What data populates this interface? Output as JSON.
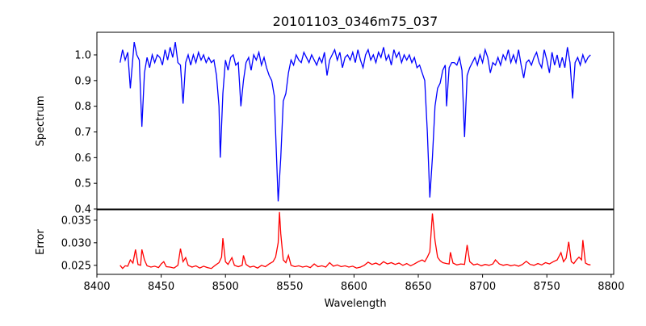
{
  "chart_data": [
    {
      "type": "line",
      "title": "20101103_0346m75_037",
      "xlabel": "",
      "ylabel": "Spectrum",
      "xlim": [
        8400,
        8802
      ],
      "ylim": [
        0.4,
        1.088
      ],
      "yticks": [
        "0.4",
        "0.5",
        "0.6",
        "0.7",
        "0.8",
        "0.9",
        "1.0"
      ],
      "ytick_values": [
        0.4,
        0.5,
        0.6,
        0.7,
        0.8,
        0.9,
        1.0
      ],
      "color": "#0000ff",
      "grid": false,
      "points": [
        [
          8418,
          0.97
        ],
        [
          8420,
          1.02
        ],
        [
          8422,
          0.98
        ],
        [
          8424,
          1.01
        ],
        [
          8426,
          0.87
        ],
        [
          8428,
          0.99
        ],
        [
          8429,
          1.05
        ],
        [
          8431,
          1.0
        ],
        [
          8433,
          0.98
        ],
        [
          8435,
          0.72
        ],
        [
          8437,
          0.93
        ],
        [
          8439,
          0.99
        ],
        [
          8441,
          0.95
        ],
        [
          8443,
          1.0
        ],
        [
          8445,
          0.97
        ],
        [
          8447,
          1.0
        ],
        [
          8449,
          0.99
        ],
        [
          8451,
          0.96
        ],
        [
          8453,
          1.02
        ],
        [
          8455,
          0.98
        ],
        [
          8457,
          1.03
        ],
        [
          8459,
          0.99
        ],
        [
          8461,
          1.05
        ],
        [
          8463,
          0.97
        ],
        [
          8465,
          0.96
        ],
        [
          8467,
          0.81
        ],
        [
          8469,
          0.97
        ],
        [
          8471,
          1.0
        ],
        [
          8473,
          0.96
        ],
        [
          8475,
          1.0
        ],
        [
          8477,
          0.97
        ],
        [
          8479,
          1.01
        ],
        [
          8481,
          0.98
        ],
        [
          8483,
          1.0
        ],
        [
          8485,
          0.97
        ],
        [
          8487,
          0.99
        ],
        [
          8489,
          0.97
        ],
        [
          8491,
          0.98
        ],
        [
          8493,
          0.92
        ],
        [
          8495,
          0.8
        ],
        [
          8496,
          0.6
        ],
        [
          8498,
          0.85
        ],
        [
          8500,
          0.98
        ],
        [
          8502,
          0.94
        ],
        [
          8504,
          0.99
        ],
        [
          8506,
          1.0
        ],
        [
          8508,
          0.96
        ],
        [
          8510,
          0.97
        ],
        [
          8512,
          0.8
        ],
        [
          8514,
          0.9
        ],
        [
          8516,
          0.97
        ],
        [
          8518,
          0.99
        ],
        [
          8520,
          0.94
        ],
        [
          8522,
          1.0
        ],
        [
          8524,
          0.98
        ],
        [
          8526,
          1.01
        ],
        [
          8528,
          0.96
        ],
        [
          8530,
          0.99
        ],
        [
          8532,
          0.95
        ],
        [
          8534,
          0.92
        ],
        [
          8536,
          0.9
        ],
        [
          8538,
          0.84
        ],
        [
          8539,
          0.7
        ],
        [
          8541,
          0.43
        ],
        [
          8543,
          0.6
        ],
        [
          8545,
          0.82
        ],
        [
          8547,
          0.85
        ],
        [
          8549,
          0.93
        ],
        [
          8551,
          0.98
        ],
        [
          8553,
          0.96
        ],
        [
          8555,
          1.0
        ],
        [
          8557,
          0.98
        ],
        [
          8559,
          0.97
        ],
        [
          8561,
          1.01
        ],
        [
          8563,
          0.99
        ],
        [
          8565,
          0.97
        ],
        [
          8567,
          1.0
        ],
        [
          8569,
          0.98
        ],
        [
          8571,
          0.96
        ],
        [
          8573,
          0.99
        ],
        [
          8575,
          0.97
        ],
        [
          8577,
          1.01
        ],
        [
          8579,
          0.92
        ],
        [
          8581,
          0.98
        ],
        [
          8583,
          1.0
        ],
        [
          8585,
          1.02
        ],
        [
          8587,
          0.98
        ],
        [
          8589,
          1.01
        ],
        [
          8591,
          0.95
        ],
        [
          8593,
          0.99
        ],
        [
          8595,
          1.0
        ],
        [
          8597,
          0.98
        ],
        [
          8599,
          1.01
        ],
        [
          8601,
          0.97
        ],
        [
          8603,
          1.02
        ],
        [
          8605,
          0.98
        ],
        [
          8607,
          0.95
        ],
        [
          8609,
          1.0
        ],
        [
          8611,
          1.02
        ],
        [
          8613,
          0.98
        ],
        [
          8615,
          1.0
        ],
        [
          8617,
          0.97
        ],
        [
          8619,
          1.01
        ],
        [
          8621,
          0.99
        ],
        [
          8623,
          1.03
        ],
        [
          8625,
          0.98
        ],
        [
          8627,
          1.0
        ],
        [
          8629,
          0.96
        ],
        [
          8631,
          1.02
        ],
        [
          8633,
          0.99
        ],
        [
          8635,
          1.01
        ],
        [
          8637,
          0.97
        ],
        [
          8639,
          1.0
        ],
        [
          8641,
          0.98
        ],
        [
          8643,
          1.0
        ],
        [
          8645,
          0.97
        ],
        [
          8647,
          0.99
        ],
        [
          8649,
          0.95
        ],
        [
          8651,
          0.96
        ],
        [
          8653,
          0.93
        ],
        [
          8655,
          0.9
        ],
        [
          8657,
          0.7
        ],
        [
          8659,
          0.445
        ],
        [
          8661,
          0.6
        ],
        [
          8663,
          0.8
        ],
        [
          8665,
          0.87
        ],
        [
          8667,
          0.89
        ],
        [
          8669,
          0.94
        ],
        [
          8671,
          0.96
        ],
        [
          8672,
          0.8
        ],
        [
          8674,
          0.95
        ],
        [
          8676,
          0.97
        ],
        [
          8678,
          0.97
        ],
        [
          8680,
          0.96
        ],
        [
          8682,
          0.99
        ],
        [
          8684,
          0.94
        ],
        [
          8686,
          0.68
        ],
        [
          8688,
          0.92
        ],
        [
          8690,
          0.95
        ],
        [
          8692,
          0.97
        ],
        [
          8694,
          0.99
        ],
        [
          8696,
          0.96
        ],
        [
          8698,
          1.0
        ],
        [
          8700,
          0.97
        ],
        [
          8702,
          1.02
        ],
        [
          8704,
          0.99
        ],
        [
          8706,
          0.93
        ],
        [
          8708,
          0.97
        ],
        [
          8710,
          0.96
        ],
        [
          8712,
          0.99
        ],
        [
          8714,
          0.96
        ],
        [
          8716,
          1.0
        ],
        [
          8718,
          0.98
        ],
        [
          8720,
          1.02
        ],
        [
          8722,
          0.97
        ],
        [
          8724,
          1.0
        ],
        [
          8726,
          0.97
        ],
        [
          8728,
          1.02
        ],
        [
          8730,
          0.96
        ],
        [
          8732,
          0.91
        ],
        [
          8734,
          0.97
        ],
        [
          8736,
          0.98
        ],
        [
          8738,
          0.96
        ],
        [
          8740,
          0.99
        ],
        [
          8742,
          1.01
        ],
        [
          8744,
          0.97
        ],
        [
          8746,
          0.95
        ],
        [
          8748,
          1.02
        ],
        [
          8750,
          0.98
        ],
        [
          8752,
          0.93
        ],
        [
          8754,
          1.01
        ],
        [
          8756,
          0.96
        ],
        [
          8758,
          1.0
        ],
        [
          8760,
          0.95
        ],
        [
          8762,
          0.99
        ],
        [
          8764,
          0.95
        ],
        [
          8766,
          1.03
        ],
        [
          8768,
          0.97
        ],
        [
          8770,
          0.83
        ],
        [
          8772,
          0.97
        ],
        [
          8774,
          0.99
        ],
        [
          8776,
          0.96
        ],
        [
          8778,
          1.0
        ],
        [
          8780,
          0.97
        ],
        [
          8782,
          0.99
        ],
        [
          8784,
          1.0
        ]
      ]
    },
    {
      "type": "line",
      "title": "",
      "xlabel": "Wavelength",
      "ylabel": "Error",
      "xlim": [
        8400,
        8802
      ],
      "ylim": [
        0.023,
        0.0373
      ],
      "xticks": [
        "8400",
        "8450",
        "8500",
        "8550",
        "8600",
        "8650",
        "8700",
        "8750",
        "8800"
      ],
      "xtick_values": [
        8400,
        8450,
        8500,
        8550,
        8600,
        8650,
        8700,
        8750,
        8800
      ],
      "yticks": [
        "0.025",
        "0.030",
        "0.035"
      ],
      "ytick_values": [
        0.025,
        0.03,
        0.035
      ],
      "color": "#ff0000",
      "grid": false,
      "points": [
        [
          8418,
          0.025
        ],
        [
          8420,
          0.0243
        ],
        [
          8422,
          0.0249
        ],
        [
          8424,
          0.0248
        ],
        [
          8426,
          0.0262
        ],
        [
          8428,
          0.0255
        ],
        [
          8430,
          0.0285
        ],
        [
          8432,
          0.0252
        ],
        [
          8434,
          0.025
        ],
        [
          8435,
          0.0285
        ],
        [
          8437,
          0.0262
        ],
        [
          8439,
          0.0249
        ],
        [
          8442,
          0.0246
        ],
        [
          8445,
          0.0248
        ],
        [
          8448,
          0.0245
        ],
        [
          8450,
          0.0253
        ],
        [
          8452,
          0.0258
        ],
        [
          8454,
          0.0247
        ],
        [
          8457,
          0.0246
        ],
        [
          8460,
          0.0244
        ],
        [
          8463,
          0.025
        ],
        [
          8465,
          0.0287
        ],
        [
          8467,
          0.0258
        ],
        [
          8469,
          0.0267
        ],
        [
          8471,
          0.025
        ],
        [
          8474,
          0.0246
        ],
        [
          8477,
          0.0249
        ],
        [
          8480,
          0.0244
        ],
        [
          8483,
          0.0248
        ],
        [
          8486,
          0.0245
        ],
        [
          8489,
          0.0243
        ],
        [
          8492,
          0.025
        ],
        [
          8495,
          0.0256
        ],
        [
          8497,
          0.0268
        ],
        [
          8498,
          0.031
        ],
        [
          8500,
          0.0258
        ],
        [
          8502,
          0.0252
        ],
        [
          8505,
          0.0267
        ],
        [
          8507,
          0.025
        ],
        [
          8510,
          0.0247
        ],
        [
          8513,
          0.025
        ],
        [
          8514,
          0.0272
        ],
        [
          8516,
          0.0252
        ],
        [
          8519,
          0.0246
        ],
        [
          8522,
          0.0248
        ],
        [
          8525,
          0.0244
        ],
        [
          8528,
          0.025
        ],
        [
          8531,
          0.0247
        ],
        [
          8534,
          0.0253
        ],
        [
          8537,
          0.0258
        ],
        [
          8539,
          0.0268
        ],
        [
          8541,
          0.03
        ],
        [
          8542,
          0.0368
        ],
        [
          8543,
          0.032
        ],
        [
          8545,
          0.0262
        ],
        [
          8547,
          0.0256
        ],
        [
          8549,
          0.0272
        ],
        [
          8551,
          0.025
        ],
        [
          8554,
          0.0247
        ],
        [
          8557,
          0.0249
        ],
        [
          8560,
          0.0246
        ],
        [
          8563,
          0.0248
        ],
        [
          8566,
          0.0245
        ],
        [
          8569,
          0.0253
        ],
        [
          8572,
          0.0247
        ],
        [
          8575,
          0.0249
        ],
        [
          8578,
          0.0246
        ],
        [
          8581,
          0.0256
        ],
        [
          8584,
          0.0248
        ],
        [
          8587,
          0.0251
        ],
        [
          8590,
          0.0247
        ],
        [
          8593,
          0.0249
        ],
        [
          8596,
          0.0246
        ],
        [
          8599,
          0.0248
        ],
        [
          8602,
          0.0244
        ],
        [
          8605,
          0.0246
        ],
        [
          8608,
          0.025
        ],
        [
          8611,
          0.0257
        ],
        [
          8614,
          0.0252
        ],
        [
          8617,
          0.0255
        ],
        [
          8620,
          0.0251
        ],
        [
          8623,
          0.0258
        ],
        [
          8626,
          0.0253
        ],
        [
          8629,
          0.0256
        ],
        [
          8632,
          0.0252
        ],
        [
          8635,
          0.0255
        ],
        [
          8638,
          0.025
        ],
        [
          8641,
          0.0254
        ],
        [
          8644,
          0.0249
        ],
        [
          8647,
          0.0253
        ],
        [
          8650,
          0.0258
        ],
        [
          8653,
          0.0262
        ],
        [
          8655,
          0.0258
        ],
        [
          8657,
          0.0268
        ],
        [
          8659,
          0.028
        ],
        [
          8661,
          0.0365
        ],
        [
          8663,
          0.0305
        ],
        [
          8665,
          0.0268
        ],
        [
          8667,
          0.026
        ],
        [
          8669,
          0.0256
        ],
        [
          8672,
          0.0254
        ],
        [
          8674,
          0.0253
        ],
        [
          8675,
          0.0279
        ],
        [
          8677,
          0.0255
        ],
        [
          8680,
          0.0251
        ],
        [
          8683,
          0.0253
        ],
        [
          8686,
          0.0252
        ],
        [
          8688,
          0.0295
        ],
        [
          8690,
          0.0258
        ],
        [
          8693,
          0.0251
        ],
        [
          8696,
          0.0253
        ],
        [
          8699,
          0.0249
        ],
        [
          8702,
          0.0252
        ],
        [
          8705,
          0.025
        ],
        [
          8708,
          0.0253
        ],
        [
          8710,
          0.0262
        ],
        [
          8713,
          0.0253
        ],
        [
          8716,
          0.025
        ],
        [
          8719,
          0.0252
        ],
        [
          8722,
          0.0249
        ],
        [
          8725,
          0.0251
        ],
        [
          8728,
          0.0248
        ],
        [
          8731,
          0.0252
        ],
        [
          8734,
          0.0259
        ],
        [
          8737,
          0.0252
        ],
        [
          8740,
          0.025
        ],
        [
          8743,
          0.0254
        ],
        [
          8746,
          0.0251
        ],
        [
          8749,
          0.0256
        ],
        [
          8752,
          0.0253
        ],
        [
          8755,
          0.0258
        ],
        [
          8758,
          0.0262
        ],
        [
          8761,
          0.0278
        ],
        [
          8763,
          0.0258
        ],
        [
          8765,
          0.0266
        ],
        [
          8767,
          0.0302
        ],
        [
          8769,
          0.0258
        ],
        [
          8771,
          0.0254
        ],
        [
          8773,
          0.0262
        ],
        [
          8775,
          0.0268
        ],
        [
          8777,
          0.0262
        ],
        [
          8778,
          0.0306
        ],
        [
          8780,
          0.0255
        ],
        [
          8782,
          0.0252
        ],
        [
          8784,
          0.0251
        ]
      ]
    }
  ]
}
